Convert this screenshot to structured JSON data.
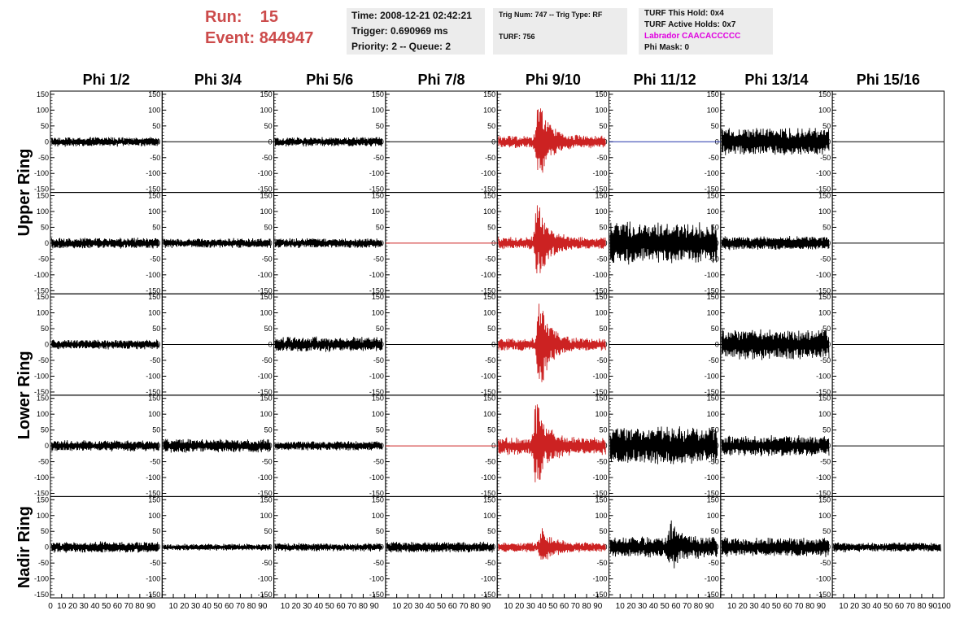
{
  "header": {
    "run_label": "Run:",
    "run_value": "15",
    "event_label": "Event:",
    "event_value": "844947",
    "time": "Time: 2008-12-21 02:42:21",
    "trigger": "Trigger: 0.690969 ms",
    "priority": "Priority: 2 -- Queue: 2",
    "trig_num": "Trig Num: 747 -- Trig Type: RF",
    "turf": "TURF: 756",
    "turf_hold": "TURF This Hold: 0x4",
    "turf_active": "TURF Active Holds: 0x7",
    "labrador": "Labrador CAACACCCCC",
    "phi_mask": "Phi Mask: 0"
  },
  "colors": {
    "signal": "#cc2222",
    "flat_red": "#cc2222",
    "flat_blue": "#2233aa",
    "default": "#000000",
    "accent": "#cc4b4b",
    "labrador": "#e000e0"
  },
  "chart_data": {
    "type": "line",
    "columns": [
      "Phi 1/2",
      "Phi 3/4",
      "Phi 5/6",
      "Phi 7/8",
      "Phi 9/10",
      "Phi 11/12",
      "Phi 13/14",
      "Phi 15/16"
    ],
    "rows": [
      "Upper Ring",
      "Lower Ring",
      "Nadir Ring"
    ],
    "ylim": [
      -160,
      160
    ],
    "yticks": [
      -150,
      -100,
      -50,
      0,
      50,
      100,
      150
    ],
    "ytick_labels": [
      "-150",
      "-100",
      "-50",
      "0",
      "50",
      "100",
      "150"
    ],
    "xlim": [
      0,
      100
    ],
    "xticks": [
      0,
      10,
      20,
      30,
      40,
      50,
      60,
      70,
      80,
      90
    ],
    "xtick_labels": [
      "0",
      "10",
      "20",
      "30",
      "40",
      "50",
      "60",
      "70",
      "80",
      "90"
    ],
    "last_xtick_label": "100",
    "panels": [
      {
        "row": 0,
        "col": 0,
        "kind": "noise",
        "amp": 14,
        "color": "default"
      },
      {
        "row": 0,
        "col": 1,
        "kind": "flat",
        "color": "default"
      },
      {
        "row": 0,
        "col": 2,
        "kind": "noise",
        "amp": 14,
        "color": "default"
      },
      {
        "row": 0,
        "col": 3,
        "kind": "flat",
        "color": "default"
      },
      {
        "row": 0,
        "col": 4,
        "kind": "signal",
        "amp": 18,
        "peak": 130,
        "center": 37,
        "color": "signal"
      },
      {
        "row": 0,
        "col": 5,
        "kind": "flat",
        "color": "flat_blue"
      },
      {
        "row": 0,
        "col": 6,
        "kind": "noise",
        "amp": 40,
        "color": "default"
      },
      {
        "row": 0,
        "col": 7,
        "kind": "flat",
        "color": "default"
      },
      {
        "row": 1,
        "col": 0,
        "kind": "noise",
        "amp": 16,
        "color": "default"
      },
      {
        "row": 1,
        "col": 1,
        "kind": "noise",
        "amp": 14,
        "color": "default"
      },
      {
        "row": 1,
        "col": 2,
        "kind": "noise",
        "amp": 14,
        "color": "default"
      },
      {
        "row": 1,
        "col": 3,
        "kind": "flat",
        "color": "flat_red"
      },
      {
        "row": 1,
        "col": 4,
        "kind": "signal",
        "amp": 18,
        "peak": 125,
        "center": 36,
        "color": "signal"
      },
      {
        "row": 1,
        "col": 5,
        "kind": "noise",
        "amp": 60,
        "color": "default"
      },
      {
        "row": 1,
        "col": 6,
        "kind": "noise",
        "amp": 20,
        "color": "default"
      },
      {
        "row": 1,
        "col": 7,
        "kind": "flat",
        "color": "default"
      },
      {
        "row": 2,
        "col": 0,
        "kind": "noise",
        "amp": 14,
        "color": "default"
      },
      {
        "row": 2,
        "col": 1,
        "kind": "flat",
        "color": "default"
      },
      {
        "row": 2,
        "col": 2,
        "kind": "noise",
        "amp": 22,
        "color": "default"
      },
      {
        "row": 2,
        "col": 3,
        "kind": "flat",
        "color": "default"
      },
      {
        "row": 2,
        "col": 4,
        "kind": "signal",
        "amp": 18,
        "peak": 140,
        "center": 38,
        "color": "signal"
      },
      {
        "row": 2,
        "col": 5,
        "kind": "flat",
        "color": "default"
      },
      {
        "row": 2,
        "col": 6,
        "kind": "noise",
        "amp": 45,
        "color": "default"
      },
      {
        "row": 2,
        "col": 7,
        "kind": "flat",
        "color": "default"
      },
      {
        "row": 3,
        "col": 0,
        "kind": "noise",
        "amp": 16,
        "color": "default"
      },
      {
        "row": 3,
        "col": 1,
        "kind": "noise",
        "amp": 20,
        "color": "default"
      },
      {
        "row": 3,
        "col": 2,
        "kind": "noise",
        "amp": 14,
        "color": "default"
      },
      {
        "row": 3,
        "col": 3,
        "kind": "flat",
        "color": "flat_red"
      },
      {
        "row": 3,
        "col": 4,
        "kind": "signal",
        "amp": 25,
        "peak": 140,
        "center": 35,
        "color": "signal"
      },
      {
        "row": 3,
        "col": 5,
        "kind": "noise",
        "amp": 55,
        "color": "default"
      },
      {
        "row": 3,
        "col": 6,
        "kind": "noise",
        "amp": 30,
        "color": "default"
      },
      {
        "row": 3,
        "col": 7,
        "kind": "flat",
        "color": "default"
      },
      {
        "row": 4,
        "col": 0,
        "kind": "noise",
        "amp": 16,
        "color": "default"
      },
      {
        "row": 4,
        "col": 1,
        "kind": "noise",
        "amp": 10,
        "color": "default"
      },
      {
        "row": 4,
        "col": 2,
        "kind": "noise",
        "amp": 12,
        "color": "default"
      },
      {
        "row": 4,
        "col": 3,
        "kind": "noise",
        "amp": 16,
        "color": "default"
      },
      {
        "row": 4,
        "col": 4,
        "kind": "signal",
        "amp": 14,
        "peak": 60,
        "center": 40,
        "color": "signal"
      },
      {
        "row": 4,
        "col": 5,
        "kind": "signal",
        "amp": 30,
        "peak": 80,
        "center": 55,
        "color": "default"
      },
      {
        "row": 4,
        "col": 6,
        "kind": "noise",
        "amp": 28,
        "color": "default"
      },
      {
        "row": 4,
        "col": 7,
        "kind": "noise",
        "amp": 14,
        "color": "default"
      }
    ]
  }
}
